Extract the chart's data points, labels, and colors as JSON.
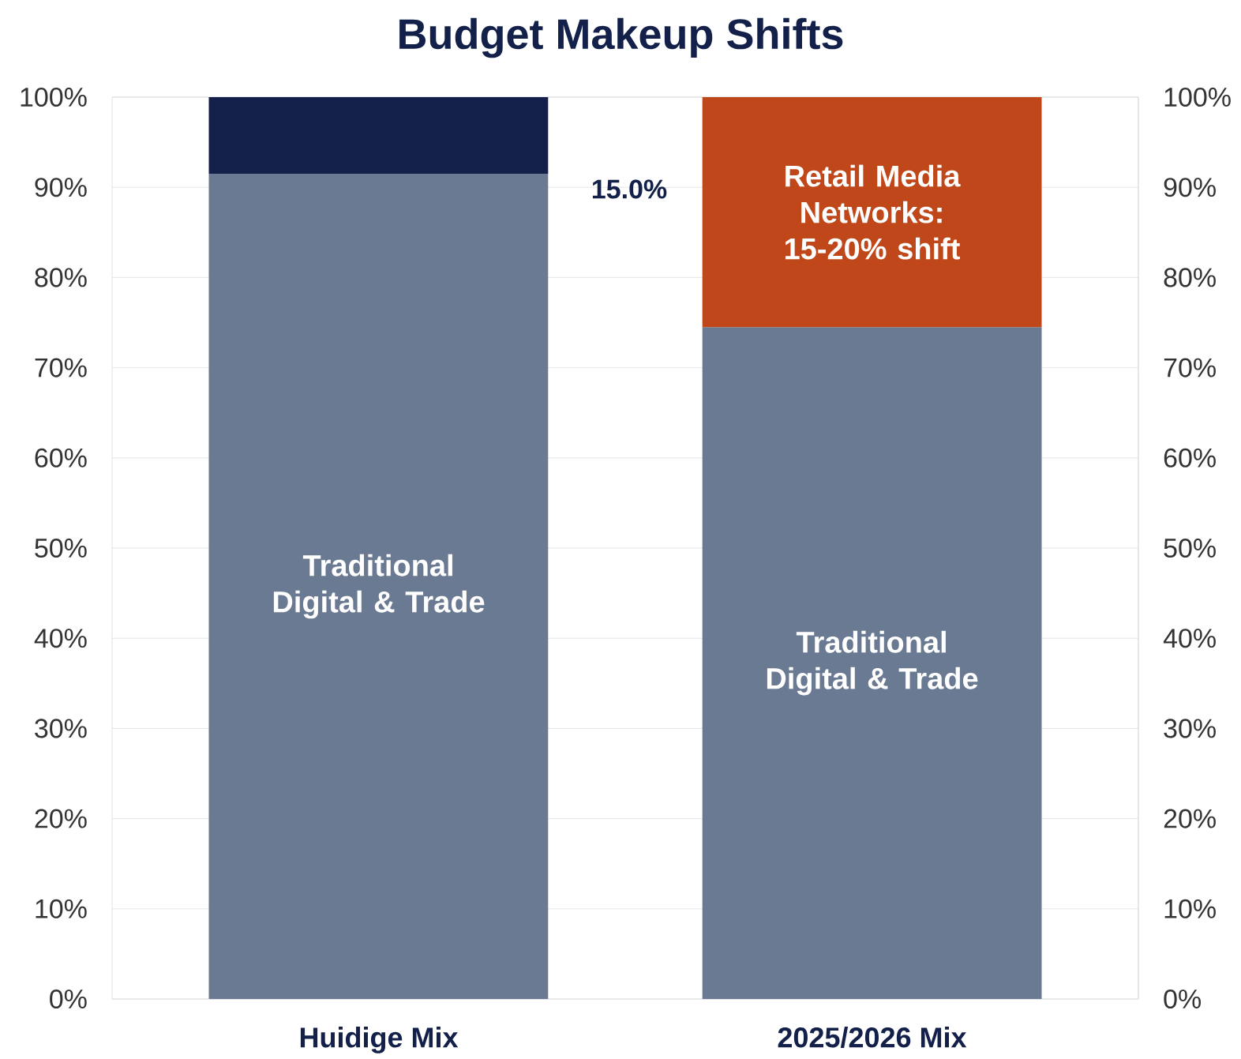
{
  "chart_data": {
    "type": "bar",
    "title": "Budget Makeup Shifts",
    "stacked": true,
    "categories": [
      "Huidige Mix",
      "2025/2026 Mix"
    ],
    "series": [
      {
        "name": "Traditional Digital & Trade",
        "color": "#6b7a93",
        "values": [
          91.5,
          74.5
        ]
      },
      {
        "color": "#13204a",
        "values": [
          8.5,
          null
        ]
      },
      {
        "name": "Retail Media Networks: 15-20% shift",
        "color": "#c0471a",
        "values": [
          null,
          25.5
        ]
      }
    ],
    "ylim": [
      0,
      100
    ],
    "yticks": [
      {
        "value": 0,
        "label": "0%"
      },
      {
        "value": 10,
        "label": "10%"
      },
      {
        "value": 20,
        "label": "20%"
      },
      {
        "value": 30,
        "label": "30%"
      },
      {
        "value": 40,
        "label": "40%"
      },
      {
        "value": 50,
        "label": "50%"
      },
      {
        "value": 60,
        "label": "60%"
      },
      {
        "value": 70,
        "label": "70%"
      },
      {
        "value": 80,
        "label": "80%"
      },
      {
        "value": 90,
        "label": "90%"
      },
      {
        "value": 100,
        "label": "100%"
      }
    ],
    "y2lim": [
      0,
      100
    ],
    "y2ticks": [
      {
        "value": 0,
        "label": "0%"
      },
      {
        "value": 10,
        "label": "10%"
      },
      {
        "value": 20,
        "label": "20%"
      },
      {
        "value": 30,
        "label": "30%"
      },
      {
        "value": 40,
        "label": "40%"
      },
      {
        "value": 50,
        "label": "50%"
      },
      {
        "value": 60,
        "label": "60%"
      },
      {
        "value": 70,
        "label": "70%"
      },
      {
        "value": 80,
        "label": "80%"
      },
      {
        "value": 90,
        "label": "90%"
      },
      {
        "value": 100,
        "label": "100%"
      }
    ],
    "annotations": [
      "15.0%"
    ],
    "grid": "y"
  }
}
